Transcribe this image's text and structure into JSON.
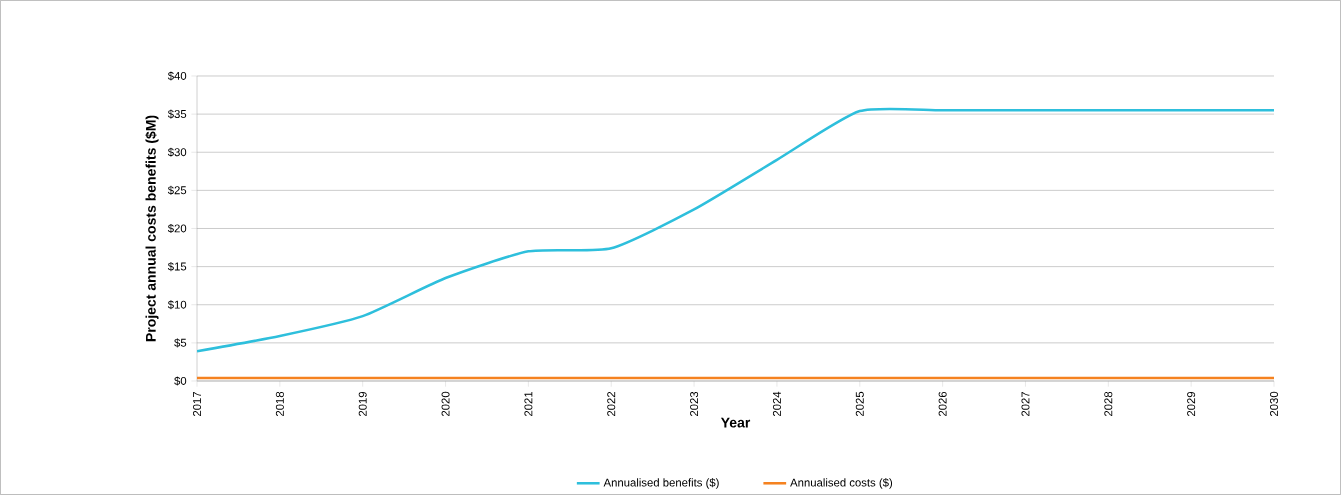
{
  "chart_data": {
    "type": "line",
    "xlabel": "Year",
    "ylabel": "Project annual costs benefits ($M)",
    "x": [
      2017,
      2018,
      2019,
      2020,
      2021,
      2022,
      2023,
      2024,
      2025,
      2026,
      2027,
      2028,
      2029,
      2030
    ],
    "series": [
      {
        "name": "Annualised benefits ($)",
        "color": "#2ebfdc",
        "values": [
          3.9,
          5.9,
          8.5,
          13.5,
          17,
          17.4,
          22.5,
          29,
          35.4,
          35.5,
          35.5,
          35.5,
          35.5,
          35.5
        ]
      },
      {
        "name": "Annualised costs ($)",
        "color": "#f58220",
        "values": [
          0.4,
          0.4,
          0.4,
          0.4,
          0.4,
          0.4,
          0.4,
          0.4,
          0.4,
          0.4,
          0.4,
          0.4,
          0.4,
          0.4
        ]
      }
    ],
    "xlim": [
      2017,
      2030
    ],
    "xticks": [
      2017,
      2018,
      2019,
      2020,
      2021,
      2022,
      2023,
      2024,
      2025,
      2026,
      2027,
      2028,
      2029,
      2030
    ],
    "ylim": [
      0,
      40
    ],
    "yticks": [
      {
        "value": 0,
        "label": "$0"
      },
      {
        "value": 5,
        "label": "$5"
      },
      {
        "value": 10,
        "label": "$10"
      },
      {
        "value": 15,
        "label": "$15"
      },
      {
        "value": 20,
        "label": "$20"
      },
      {
        "value": 25,
        "label": "$25"
      },
      {
        "value": 30,
        "label": "$30"
      },
      {
        "value": 35,
        "label": "$35"
      },
      {
        "value": 40,
        "label": "$40"
      }
    ],
    "grid": "y",
    "legend": "bottom",
    "marker": "none",
    "line_style": "solid"
  }
}
